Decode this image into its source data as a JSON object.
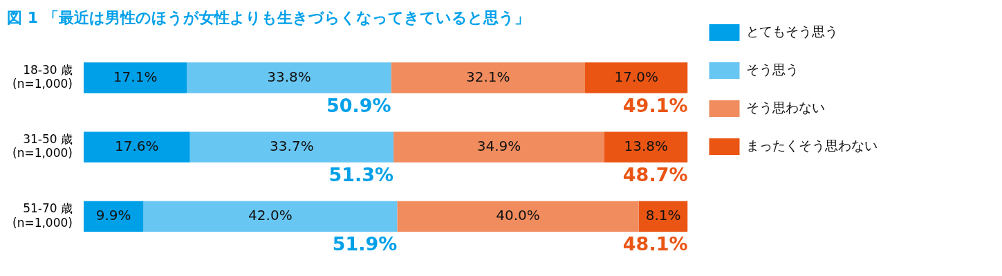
{
  "chart_data": {
    "type": "bar",
    "orientation": "horizontal",
    "stacked": true,
    "title": "図 1 「最近は男性のほうが女性よりも生きづらくなってきていると思う」",
    "categories": [
      "18-30 歳\n(n=1,000)",
      "31-50 歳\n(n=1,000)",
      "51-70 歳\n(n=1,000)"
    ],
    "series": [
      {
        "name": "とてもそう思う",
        "color": "#00a0e9",
        "values": [
          17.1,
          17.6,
          9.9
        ],
        "value_labels": [
          "17.1%",
          "17.6%",
          "9.9%"
        ]
      },
      {
        "name": "そう思う",
        "color": "#68c6f2",
        "values": [
          33.8,
          33.7,
          42.0
        ],
        "value_labels": [
          "33.8%",
          "33.7%",
          "42.0%"
        ]
      },
      {
        "name": "そう思わない",
        "color": "#f08c5e",
        "values": [
          32.1,
          34.9,
          40.0
        ],
        "value_labels": [
          "32.1%",
          "34.9%",
          "40.0%"
        ]
      },
      {
        "name": "まったくそう思わない",
        "color": "#ea5514",
        "values": [
          17.0,
          13.8,
          8.1
        ],
        "value_labels": [
          "17.0%",
          "13.8%",
          "8.1%"
        ]
      }
    ],
    "annotations": [
      {
        "text": "50.9%",
        "x": 50.9,
        "y": "18-30 歳\n(n=1,000)"
      },
      {
        "text": "49.1%",
        "x": 100,
        "y": "18-30 歳\n(n=1,000)"
      },
      {
        "text": "51.3%",
        "x": 51.3,
        "y": "31-50 歳\n(n=1,000)"
      },
      {
        "text": "48.7%",
        "x": 100,
        "y": "31-50 歳\n(n=1,000)"
      },
      {
        "text": "51.9%",
        "x": 51.9,
        "y": "51-70 歳\n(n=1,000)"
      },
      {
        "text": "48.1%",
        "x": 100,
        "y": "51-70 歳\n(n=1,000)"
      }
    ],
    "xlim": [
      0,
      100
    ],
    "tick_labels": "y",
    "legend": "right"
  }
}
